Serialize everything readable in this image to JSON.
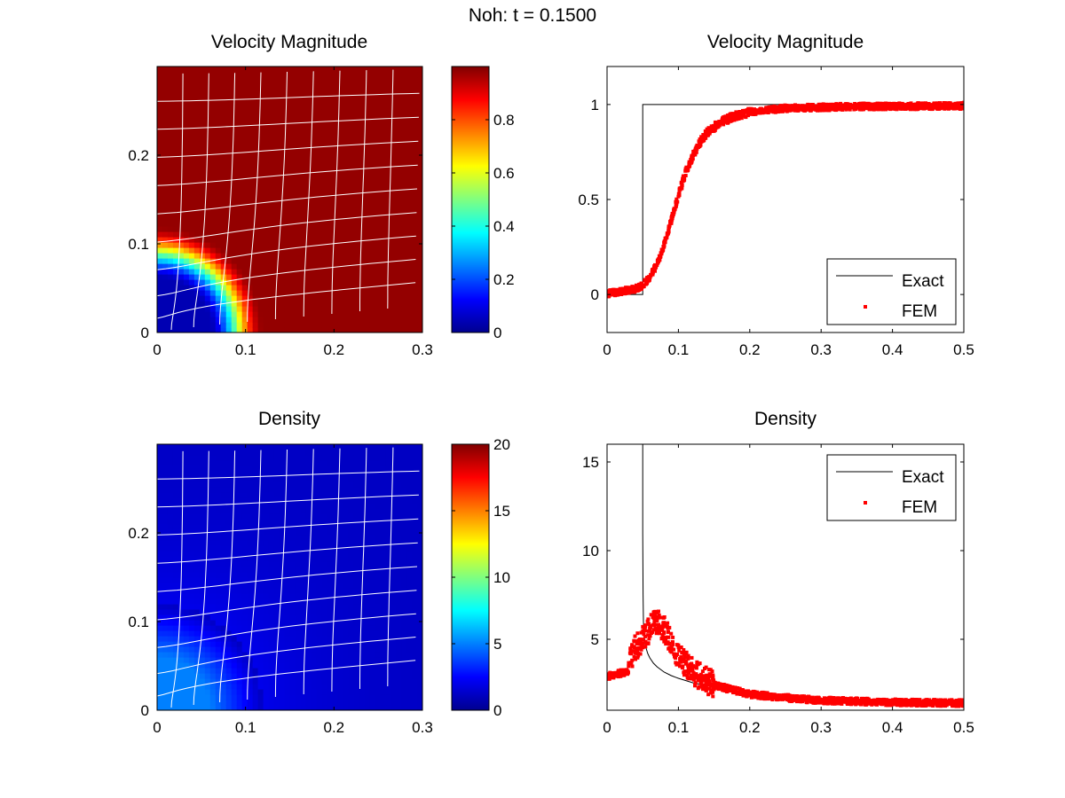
{
  "figure_title": "Noh: t = 0.1500",
  "chart_data": [
    {
      "type": "heatmap",
      "title": "Velocity Magnitude",
      "field": "velocity-magnitude",
      "xlim": [
        0,
        0.3
      ],
      "ylim": [
        0,
        0.3
      ],
      "xticks": [
        "0",
        "0.1",
        "0.2",
        "0.3"
      ],
      "yticks": [
        "0",
        "0.1",
        "0.2"
      ],
      "mesh": "deformed grid, white lines",
      "colormap": "jet",
      "colorbar": {
        "range": [
          0,
          1
        ],
        "ticks": [
          "0",
          "0.2",
          "0.4",
          "0.6",
          "0.8"
        ]
      },
      "profile": {
        "r_inner": 0.06,
        "r_shock": 0.12,
        "inner_value": 0.05,
        "outer_value": 0.98
      }
    },
    {
      "type": "line",
      "title": "Velocity Magnitude",
      "xlim": [
        0,
        0.5
      ],
      "ylim": [
        -0.2,
        1.2
      ],
      "xticks": [
        "0",
        "0.1",
        "0.2",
        "0.3",
        "0.4",
        "0.5"
      ],
      "yticks": [
        "0",
        "0.5",
        "1"
      ],
      "legend": "bottom-right",
      "series": [
        {
          "name": "Exact",
          "color": "#000000",
          "x": [
            0,
            0.05,
            0.05,
            0.5
          ],
          "y": [
            0,
            0,
            1,
            1
          ]
        },
        {
          "name": "FEM",
          "color": "#ff0000",
          "x": [
            0,
            0.02,
            0.04,
            0.05,
            0.06,
            0.07,
            0.08,
            0.09,
            0.1,
            0.11,
            0.12,
            0.13,
            0.14,
            0.15,
            0.16,
            0.18,
            0.2,
            0.22,
            0.25,
            0.3,
            0.35,
            0.4,
            0.45,
            0.5
          ],
          "y": [
            0.005,
            0.015,
            0.03,
            0.05,
            0.09,
            0.16,
            0.26,
            0.39,
            0.52,
            0.64,
            0.73,
            0.8,
            0.85,
            0.88,
            0.91,
            0.94,
            0.96,
            0.97,
            0.98,
            0.985,
            0.99,
            0.99,
            0.992,
            0.993
          ]
        }
      ]
    },
    {
      "type": "heatmap",
      "title": "Density",
      "field": "density",
      "xlim": [
        0,
        0.3
      ],
      "ylim": [
        0,
        0.3
      ],
      "xticks": [
        "0",
        "0.1",
        "0.2",
        "0.3"
      ],
      "yticks": [
        "0",
        "0.1",
        "0.2"
      ],
      "mesh": "deformed grid, white lines",
      "colormap": "jet",
      "colorbar": {
        "range": [
          0,
          20
        ],
        "ticks": [
          "0",
          "5",
          "10",
          "15",
          "20"
        ]
      },
      "profile": {
        "r_inner": 0.06,
        "r_shock": 0.12,
        "inner_value": 5.0,
        "outer_value": 1.3
      }
    },
    {
      "type": "line",
      "title": "Density",
      "xlim": [
        0,
        0.5
      ],
      "ylim": [
        1,
        16
      ],
      "xticks": [
        "0",
        "0.1",
        "0.2",
        "0.3",
        "0.4",
        "0.5"
      ],
      "yticks": [
        "5",
        "10",
        "15"
      ],
      "legend": "top-right",
      "series": [
        {
          "name": "Exact",
          "color": "#000000",
          "x": [
            0.05,
            0.05,
            0.0505,
            0.051,
            0.052,
            0.054,
            0.057,
            0.06,
            0.065,
            0.07,
            0.08,
            0.09,
            0.1,
            0.12,
            0.15,
            0.2,
            0.25,
            0.3,
            0.4,
            0.5
          ],
          "y": [
            16,
            11,
            7.5,
            6,
            5.2,
            4.6,
            4.2,
            3.95,
            3.65,
            3.45,
            3.15,
            2.95,
            2.8,
            2.55,
            2.3,
            1.9,
            1.7,
            1.55,
            1.45,
            1.4
          ]
        },
        {
          "name": "FEM",
          "color": "#ff0000",
          "x": [
            0,
            0.01,
            0.02,
            0.03,
            0.035,
            0.04,
            0.045,
            0.05,
            0.055,
            0.06,
            0.065,
            0.07,
            0.075,
            0.08,
            0.085,
            0.09,
            0.095,
            0.1,
            0.11,
            0.12,
            0.13,
            0.14,
            0.15,
            0.17,
            0.2,
            0.25,
            0.3,
            0.35,
            0.4,
            0.45,
            0.5
          ],
          "y": [
            2.9,
            3.0,
            3.1,
            3.2,
            4.2,
            4.5,
            4.8,
            5.0,
            5.3,
            5.6,
            5.8,
            5.9,
            5.8,
            5.6,
            5.3,
            4.9,
            4.5,
            4.1,
            3.6,
            3.2,
            2.9,
            2.65,
            2.45,
            2.2,
            1.9,
            1.7,
            1.55,
            1.5,
            1.45,
            1.42,
            1.4
          ]
        }
      ]
    }
  ]
}
